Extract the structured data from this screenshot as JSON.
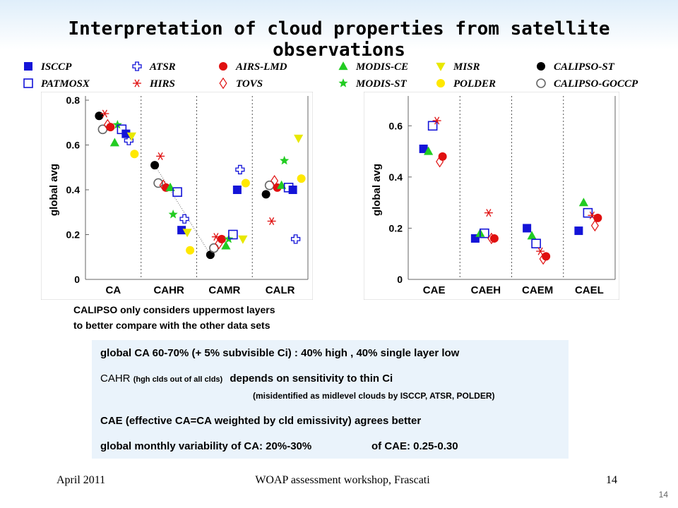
{
  "title": "Interpretation of cloud properties from satellite observations",
  "legend": [
    {
      "label": "ISCCP",
      "marker": "square-filled",
      "color": "#1414d8"
    },
    {
      "label": "ATSR",
      "marker": "plus-open",
      "color": "#1414d8"
    },
    {
      "label": "AIRS-LMD",
      "marker": "circle-filled",
      "color": "#e01010"
    },
    {
      "label": "MODIS-CE",
      "marker": "triangle-up-filled",
      "color": "#22cc22"
    },
    {
      "label": "MISR",
      "marker": "triangle-down-filled",
      "color": "#e8e800"
    },
    {
      "label": "CALIPSO-ST",
      "marker": "circle-filled",
      "color": "#000000"
    },
    {
      "label": "PATMOSX",
      "marker": "square-open",
      "color": "#1414d8"
    },
    {
      "label": "HIRS",
      "marker": "asterisk",
      "color": "#e01010"
    },
    {
      "label": "TOVS",
      "marker": "diamond-open",
      "color": "#e01010"
    },
    {
      "label": "MODIS-ST",
      "marker": "star-filled",
      "color": "#22cc22"
    },
    {
      "label": "POLDER",
      "marker": "circle-filled",
      "color": "#ffe800"
    },
    {
      "label": "CALIPSO-GOCCP",
      "marker": "circle-open",
      "color": "#666666"
    }
  ],
  "chart_data": [
    {
      "type": "scatter",
      "ylabel": "global avg",
      "ylim": [
        0,
        0.8
      ],
      "yticks": [
        "0",
        "0.2",
        "0.4",
        "0.6",
        "0.8"
      ],
      "categories": [
        "CA",
        "CAHR",
        "CAMR",
        "CALR"
      ],
      "series": [
        {
          "name": "CALIPSO-ST",
          "values": [
            0.73,
            0.51,
            0.11,
            0.38
          ]
        },
        {
          "name": "CALIPSO-GOCCP",
          "values": [
            0.67,
            0.43,
            0.14,
            0.42
          ]
        },
        {
          "name": "HIRS",
          "values": [
            0.74,
            0.55,
            0.19,
            0.26
          ]
        },
        {
          "name": "TOVS",
          "values": [
            0.69,
            0.42,
            0.16,
            0.44
          ]
        },
        {
          "name": "AIRS-LMD",
          "values": [
            0.68,
            0.41,
            0.18,
            0.41
          ]
        },
        {
          "name": "MODIS-CE",
          "values": [
            0.61,
            0.41,
            0.15,
            0.42
          ]
        },
        {
          "name": "MODIS-ST",
          "values": [
            0.69,
            0.29,
            0.18,
            0.53
          ]
        },
        {
          "name": "PATMOSX",
          "values": [
            0.67,
            0.39,
            0.2,
            0.41
          ]
        },
        {
          "name": "ISCCP",
          "values": [
            0.65,
            0.22,
            0.4,
            0.4
          ]
        },
        {
          "name": "ATSR",
          "values": [
            0.62,
            0.27,
            0.49,
            0.18
          ]
        },
        {
          "name": "MISR",
          "values": [
            0.64,
            0.21,
            0.18,
            0.63
          ]
        },
        {
          "name": "POLDER",
          "values": [
            0.56,
            0.13,
            0.43,
            0.45
          ]
        }
      ]
    },
    {
      "type": "scatter",
      "ylabel": "global avg",
      "ylim": [
        0,
        0.7
      ],
      "yticks": [
        "0",
        "0.2",
        "0.4",
        "0.6"
      ],
      "categories": [
        "CAE",
        "CAEH",
        "CAEM",
        "CAEL"
      ],
      "series": [
        {
          "name": "ISCCP",
          "values": [
            0.51,
            0.16,
            0.2,
            0.19
          ]
        },
        {
          "name": "MODIS-CE",
          "values": [
            0.5,
            0.18,
            0.17,
            0.3
          ]
        },
        {
          "name": "PATMOSX",
          "values": [
            0.6,
            0.18,
            0.14,
            0.26
          ]
        },
        {
          "name": "HIRS",
          "values": [
            0.62,
            0.26,
            0.11,
            0.25
          ]
        },
        {
          "name": "TOVS",
          "values": [
            0.46,
            0.16,
            0.08,
            0.21
          ]
        },
        {
          "name": "AIRS-LMD",
          "values": [
            0.48,
            0.16,
            0.09,
            0.24
          ]
        }
      ]
    }
  ],
  "caption": {
    "line1": "CALIPSO only considers uppermost layers",
    "line2": "to better compare with the other data sets"
  },
  "notes": {
    "line1": "global CA 60-70% (+ 5% subvisible Ci) : 40% high , 40% single layer low",
    "line2_main": "CAHR",
    "line2_small": "(hgh clds out of all clds)",
    "line2_rest": "depends on sensitivity to thin Ci",
    "line3": "(misidentified as midlevel clouds by ISCCP, ATSR, POLDER)",
    "line4": "CAE (effective CA=CA weighted by cld emissivity) agrees better",
    "line5a": "global monthly variability of CA: 20%-30%",
    "line5b": "of CAE: 0.25-0.30"
  },
  "footer": {
    "date": "April 2011",
    "event": "WOAP assessment workshop, Frascati",
    "page": "14",
    "corner": "14"
  }
}
